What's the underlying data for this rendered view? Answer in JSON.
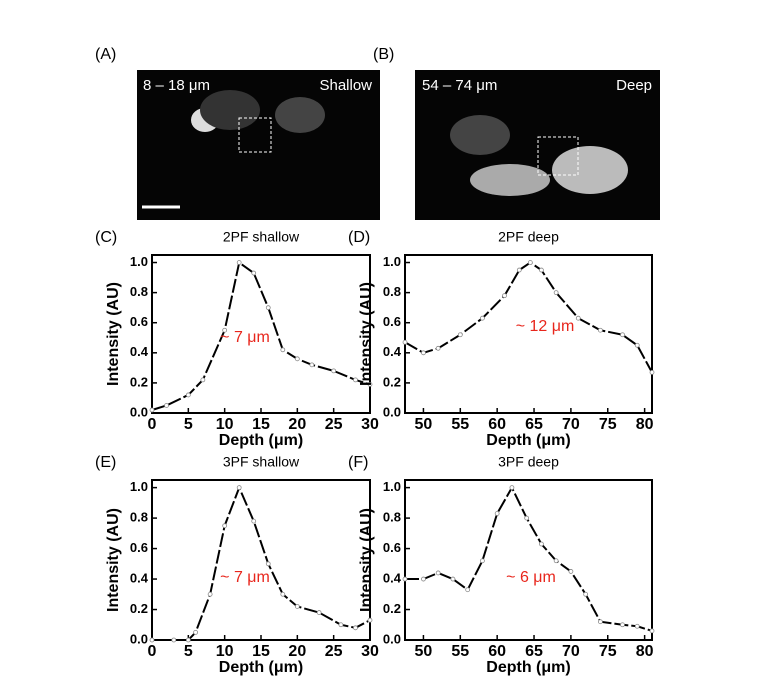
{
  "panels": [
    {
      "label": "(A)",
      "range": "8 – 18 μm",
      "depth": "Shallow"
    },
    {
      "label": "(B)",
      "range": "54 – 74 μm",
      "depth": "Deep"
    }
  ],
  "chart_data": [
    {
      "type": "line",
      "label": "(C)",
      "title": "2PF shallow",
      "xlabel": "Depth (μm)",
      "ylabel": "Intensity (AU)",
      "annotation": "~ 7 μm",
      "color": "#000000",
      "x": [
        0,
        2,
        5,
        7,
        10,
        12,
        14,
        16,
        18,
        20,
        22,
        25,
        28,
        30
      ],
      "values": [
        0.02,
        0.05,
        0.12,
        0.22,
        0.55,
        1.0,
        0.93,
        0.7,
        0.42,
        0.36,
        0.32,
        0.28,
        0.22,
        0.19
      ],
      "xlim": [
        0,
        30
      ],
      "ylim": [
        0,
        1.05
      ],
      "xticks": [
        0,
        5,
        10,
        15,
        20,
        25,
        30
      ],
      "yticks": [
        {
          "value": 0,
          "label": "0.0"
        },
        0.2,
        0.4,
        0.6,
        0.8,
        {
          "value": 1,
          "label": "1.0"
        }
      ]
    },
    {
      "type": "line",
      "label": "(D)",
      "title": "2PF deep",
      "xlabel": "Depth (μm)",
      "ylabel": "Intensity (AU)",
      "annotation": "~ 12 μm",
      "color": "#000000",
      "x": [
        47.5,
        50,
        52,
        55,
        58,
        61,
        63,
        64.5,
        66,
        68,
        71,
        74,
        77,
        79,
        81
      ],
      "values": [
        0.47,
        0.4,
        0.43,
        0.52,
        0.63,
        0.78,
        0.95,
        1.0,
        0.95,
        0.8,
        0.63,
        0.55,
        0.52,
        0.45,
        0.27
      ],
      "xlim": [
        47.5,
        81
      ],
      "ylim": [
        0,
        1.05
      ],
      "xticks": [
        50,
        55,
        60,
        65,
        70,
        75,
        80
      ],
      "yticks": [
        {
          "value": 0,
          "label": "0.0"
        },
        0.2,
        0.4,
        0.6,
        0.8,
        {
          "value": 1,
          "label": "1.0"
        }
      ]
    },
    {
      "type": "line",
      "label": "(E)",
      "title": "3PF shallow",
      "xlabel": "Depth (μm)",
      "ylabel": "Intensity (AU)",
      "annotation": "~ 7 μm",
      "color": "#000000",
      "x": [
        0,
        3,
        5,
        6,
        8,
        10,
        12,
        14,
        16,
        18,
        20,
        23,
        26,
        28,
        30
      ],
      "values": [
        0,
        0,
        0,
        0.05,
        0.3,
        0.75,
        1.0,
        0.78,
        0.5,
        0.3,
        0.22,
        0.18,
        0.1,
        0.08,
        0.13
      ],
      "xlim": [
        0,
        30
      ],
      "ylim": [
        0,
        1.05
      ],
      "xticks": [
        0,
        5,
        10,
        15,
        20,
        25,
        30
      ],
      "yticks": [
        {
          "value": 0,
          "label": "0.0"
        },
        0.2,
        0.4,
        0.6,
        0.8,
        {
          "value": 1,
          "label": "1.0"
        }
      ]
    },
    {
      "type": "line",
      "label": "(F)",
      "title": "3PF deep",
      "xlabel": "Depth (μm)",
      "ylabel": "Intensity (AU)",
      "annotation": "~ 6 μm",
      "color": "#000000",
      "x": [
        47.5,
        50,
        52,
        54,
        56,
        58,
        60,
        62,
        64,
        66,
        68,
        70,
        72,
        74,
        77,
        79,
        81
      ],
      "values": [
        0.4,
        0.4,
        0.44,
        0.4,
        0.33,
        0.52,
        0.83,
        1.0,
        0.8,
        0.63,
        0.52,
        0.45,
        0.3,
        0.12,
        0.1,
        0.09,
        0.06
      ],
      "xlim": [
        47.5,
        81
      ],
      "ylim": [
        0,
        1.05
      ],
      "xticks": [
        50,
        55,
        60,
        65,
        70,
        75,
        80
      ],
      "yticks": [
        {
          "value": 0,
          "label": "0.0"
        },
        0.2,
        0.4,
        0.6,
        0.8,
        {
          "value": 1,
          "label": "1.0"
        }
      ]
    }
  ]
}
